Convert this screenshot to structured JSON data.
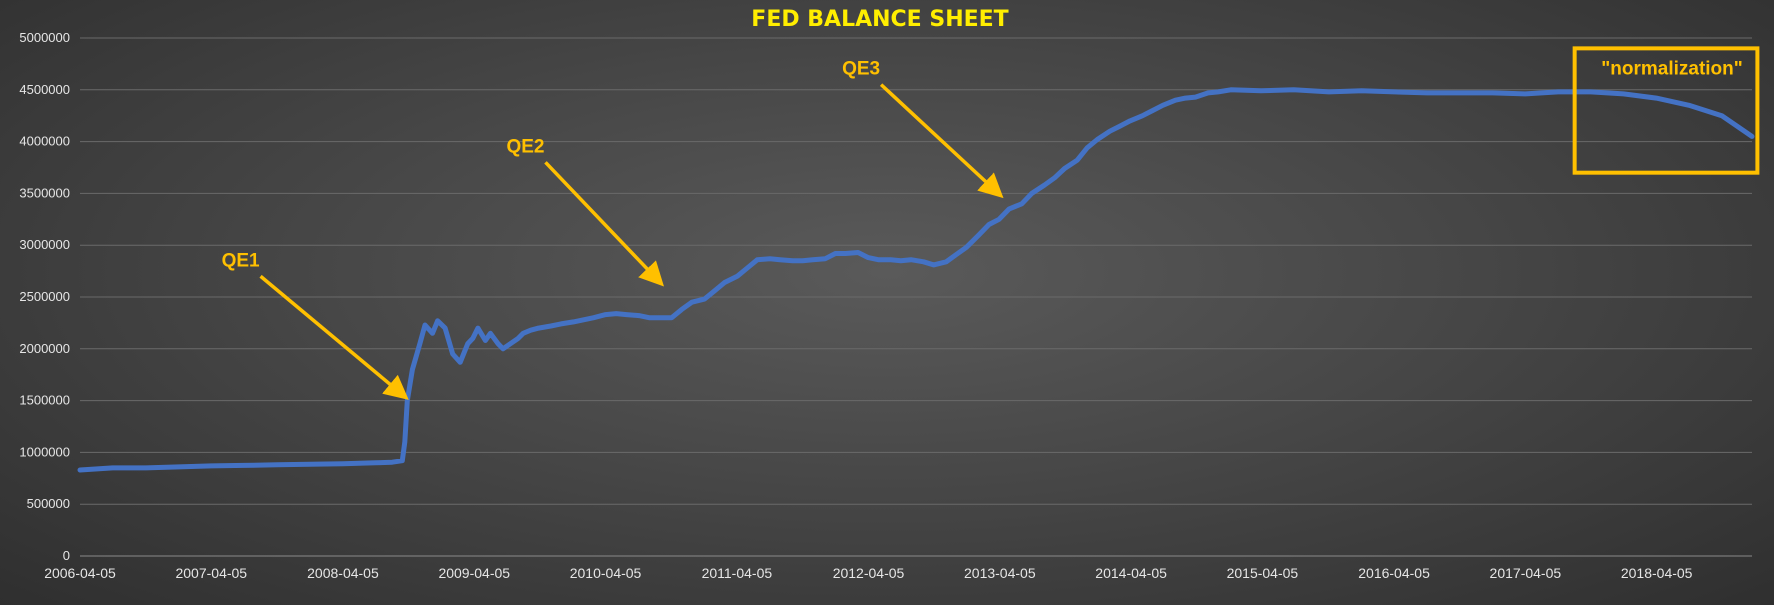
{
  "colors": {
    "series": "#4472c4",
    "title": "#ffee00",
    "annotation": "#ffc000",
    "tick": "#e6e6e6"
  },
  "chart_data": {
    "type": "line",
    "title": "FED BALANCE SHEET",
    "xlabel": "",
    "ylabel": "",
    "ylim": [
      0,
      5000000
    ],
    "yticks": [
      0,
      500000,
      1000000,
      1500000,
      2000000,
      2500000,
      3000000,
      3500000,
      4000000,
      4500000,
      5000000
    ],
    "ytick_labels": [
      "0",
      "500000",
      "1000000",
      "1500000",
      "2000000",
      "2500000",
      "3000000",
      "3500000",
      "4000000",
      "4500000",
      "5000000"
    ],
    "xlim": [
      "2006-04-05",
      "2018-12-26"
    ],
    "xtick_labels": [
      "2006-04-05",
      "2007-04-05",
      "2008-04-05",
      "2009-04-05",
      "2010-04-05",
      "2011-04-05",
      "2012-04-05",
      "2013-04-05",
      "2014-04-05",
      "2015-04-05",
      "2016-04-05",
      "2017-04-05",
      "2018-04-05"
    ],
    "grid": true,
    "series": [
      {
        "x": [
          "2006-04-05",
          "2006-07-05",
          "2006-10-05",
          "2007-01-05",
          "2007-04-05",
          "2007-07-05",
          "2007-10-05",
          "2008-01-05",
          "2008-04-05",
          "2008-07-05",
          "2008-08-20",
          "2008-09-17",
          "2008-09-24",
          "2008-10-01",
          "2008-10-15",
          "2008-11-05",
          "2008-11-19",
          "2008-12-10",
          "2008-12-24",
          "2009-01-14",
          "2009-02-04",
          "2009-02-25",
          "2009-03-18",
          "2009-04-01",
          "2009-04-15",
          "2009-05-06",
          "2009-05-20",
          "2009-06-10",
          "2009-06-24",
          "2009-07-15",
          "2009-08-05",
          "2009-08-19",
          "2009-09-09",
          "2009-10-01",
          "2009-11-04",
          "2009-12-02",
          "2010-01-06",
          "2010-02-03",
          "2010-03-03",
          "2010-04-05",
          "2010-05-05",
          "2010-06-02",
          "2010-07-07",
          "2010-08-04",
          "2010-09-01",
          "2010-10-06",
          "2010-11-03",
          "2010-12-01",
          "2011-01-05",
          "2011-02-02",
          "2011-03-02",
          "2011-04-06",
          "2011-05-04",
          "2011-06-01",
          "2011-07-06",
          "2011-08-03",
          "2011-09-07",
          "2011-10-05",
          "2011-11-02",
          "2011-12-07",
          "2012-01-04",
          "2012-02-01",
          "2012-03-07",
          "2012-04-04",
          "2012-05-02",
          "2012-06-06",
          "2012-07-04",
          "2012-08-01",
          "2012-09-05",
          "2012-10-03",
          "2012-11-07",
          "2012-12-05",
          "2013-01-02",
          "2013-02-06",
          "2013-03-06",
          "2013-04-03",
          "2013-05-01",
          "2013-06-05",
          "2013-07-03",
          "2013-08-07",
          "2013-09-04",
          "2013-10-02",
          "2013-11-06",
          "2013-12-04",
          "2014-01-01",
          "2014-02-05",
          "2014-03-05",
          "2014-04-02",
          "2014-05-07",
          "2014-06-04",
          "2014-07-02",
          "2014-08-06",
          "2014-09-03",
          "2014-10-01",
          "2014-11-05",
          "2014-12-03",
          "2015-01-07",
          "2015-04-01",
          "2015-07-01",
          "2015-10-07",
          "2016-01-06",
          "2016-04-06",
          "2016-07-06",
          "2016-10-05",
          "2017-01-04",
          "2017-04-05",
          "2017-07-05",
          "2017-10-04",
          "2018-01-03",
          "2018-04-04",
          "2018-07-04",
          "2018-10-03",
          "2018-12-26"
        ],
        "values": [
          830000,
          850000,
          850000,
          860000,
          870000,
          875000,
          880000,
          885000,
          890000,
          900000,
          905000,
          920000,
          1100000,
          1500000,
          1800000,
          2050000,
          2230000,
          2150000,
          2270000,
          2200000,
          1950000,
          1870000,
          2050000,
          2100000,
          2200000,
          2080000,
          2150000,
          2050000,
          2000000,
          2050000,
          2100000,
          2150000,
          2180000,
          2200000,
          2220000,
          2240000,
          2260000,
          2280000,
          2300000,
          2330000,
          2340000,
          2330000,
          2320000,
          2300000,
          2300000,
          2300000,
          2380000,
          2450000,
          2480000,
          2560000,
          2640000,
          2700000,
          2780000,
          2860000,
          2870000,
          2860000,
          2850000,
          2850000,
          2860000,
          2870000,
          2920000,
          2920000,
          2930000,
          2880000,
          2860000,
          2860000,
          2850000,
          2860000,
          2840000,
          2810000,
          2840000,
          2910000,
          2980000,
          3100000,
          3200000,
          3250000,
          3350000,
          3400000,
          3500000,
          3580000,
          3650000,
          3740000,
          3820000,
          3940000,
          4020000,
          4100000,
          4150000,
          4200000,
          4250000,
          4300000,
          4350000,
          4400000,
          4420000,
          4430000,
          4470000,
          4480000,
          4500000,
          4490000,
          4500000,
          4480000,
          4490000,
          4480000,
          4470000,
          4470000,
          4470000,
          4460000,
          4480000,
          4480000,
          4460000,
          4420000,
          4350000,
          4250000,
          4050000
        ]
      }
    ],
    "annotations": [
      {
        "label": "QE1",
        "from_date": "2007-08-20",
        "from_value": 2700000,
        "to_date": "2008-09-20",
        "to_value": 1550000
      },
      {
        "label": "QE2",
        "from_date": "2009-10-20",
        "from_value": 3800000,
        "to_date": "2010-09-01",
        "to_value": 2650000
      },
      {
        "label": "QE3",
        "from_date": "2012-05-10",
        "from_value": 4550000,
        "to_date": "2013-04-01",
        "to_value": 3500000
      }
    ],
    "highlight_box": {
      "label": "\"normalization\"",
      "from_date": "2017-08-20",
      "to_date": "2019-01-10",
      "y_low": 3700000,
      "y_high": 4900000
    }
  }
}
